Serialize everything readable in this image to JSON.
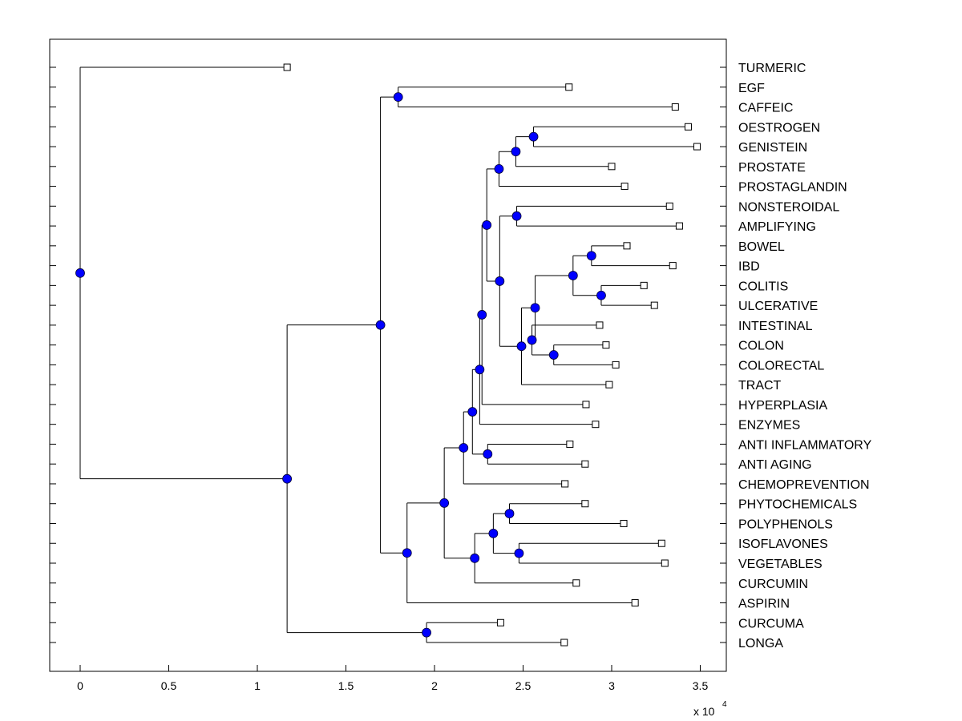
{
  "chart_data": {
    "type": "dendrogram",
    "title": "",
    "xlabel": "",
    "ylabel": "",
    "x_scale_label": "x 10",
    "x_scale_exponent": "4",
    "xlim": [
      -0.17,
      3.65
    ],
    "xticks": [
      "0",
      "0.5",
      "1",
      "1.5",
      "2",
      "2.5",
      "3",
      "3.5"
    ],
    "xtick_values": [
      0,
      0.5,
      1,
      1.5,
      2,
      2.5,
      3,
      3.5
    ],
    "colors": {
      "node": "#0000ff",
      "line": "#000000",
      "leaf": "#ffffff"
    },
    "leaves": [
      {
        "name": "TURMERIC",
        "height": 1.168
      },
      {
        "name": "EGF",
        "height": 2.759
      },
      {
        "name": "CAFFEIC",
        "height": 3.359
      },
      {
        "name": "OESTROGEN",
        "height": 3.432
      },
      {
        "name": "GENISTEIN",
        "height": 3.482
      },
      {
        "name": "PROSTATE",
        "height": 3.0
      },
      {
        "name": "PROSTAGLANDIN",
        "height": 3.073
      },
      {
        "name": "NONSTEROIDAL",
        "height": 3.327
      },
      {
        "name": "AMPLIFYING",
        "height": 3.382
      },
      {
        "name": "BOWEL",
        "height": 3.086
      },
      {
        "name": "IBD",
        "height": 3.345
      },
      {
        "name": "COLITIS",
        "height": 3.182
      },
      {
        "name": "ULCERATIVE",
        "height": 3.241
      },
      {
        "name": "INTESTINAL",
        "height": 2.932
      },
      {
        "name": "COLON",
        "height": 2.968
      },
      {
        "name": "COLORECTAL",
        "height": 3.023
      },
      {
        "name": "TRACT",
        "height": 2.986
      },
      {
        "name": "HYPERPLASIA",
        "height": 2.855
      },
      {
        "name": "ENZYMES",
        "height": 2.909
      },
      {
        "name": "ANTI INFLAMMATORY",
        "height": 2.764
      },
      {
        "name": "ANTI AGING",
        "height": 2.85
      },
      {
        "name": "CHEMOPREVENTION",
        "height": 2.736
      },
      {
        "name": "PHYTOCHEMICALS",
        "height": 2.85
      },
      {
        "name": "POLYPHENOLS",
        "height": 3.068
      },
      {
        "name": "ISOFLAVONES",
        "height": 3.282
      },
      {
        "name": "VEGETABLES",
        "height": 3.3
      },
      {
        "name": "CURCUMIN",
        "height": 2.8
      },
      {
        "name": "ASPIRIN",
        "height": 3.132
      },
      {
        "name": "CURCUMA",
        "height": 2.373
      },
      {
        "name": "LONGA",
        "height": 2.732
      }
    ],
    "merges": [
      {
        "children": [
          1,
          2
        ],
        "height": 1.795
      },
      {
        "children": [
          3,
          4
        ],
        "height": 2.559
      },
      {
        "children": [
          31,
          5
        ],
        "height": 2.459
      },
      {
        "children": [
          32,
          6
        ],
        "height": 2.364
      },
      {
        "children": [
          7,
          8
        ],
        "height": 2.464
      },
      {
        "children": [
          9,
          10
        ],
        "height": 2.886
      },
      {
        "children": [
          11,
          12
        ],
        "height": 2.941
      },
      {
        "children": [
          35,
          36
        ],
        "height": 2.782
      },
      {
        "children": [
          14,
          15
        ],
        "height": 2.673
      },
      {
        "children": [
          13,
          38
        ],
        "height": 2.55
      },
      {
        "children": [
          37,
          39
        ],
        "height": 2.568
      },
      {
        "children": [
          40,
          16
        ],
        "height": 2.491
      },
      {
        "children": [
          34,
          41
        ],
        "height": 2.368
      },
      {
        "children": [
          33,
          42
        ],
        "height": 2.295
      },
      {
        "children": [
          43,
          17
        ],
        "height": 2.268
      },
      {
        "children": [
          44,
          18
        ],
        "height": 2.255
      },
      {
        "children": [
          19,
          20
        ],
        "height": 2.3
      },
      {
        "children": [
          45,
          46
        ],
        "height": 2.214
      },
      {
        "children": [
          47,
          21
        ],
        "height": 2.164
      },
      {
        "children": [
          22,
          23
        ],
        "height": 2.423
      },
      {
        "children": [
          24,
          25
        ],
        "height": 2.477
      },
      {
        "children": [
          49,
          50
        ],
        "height": 2.332
      },
      {
        "children": [
          51,
          26
        ],
        "height": 2.227
      },
      {
        "children": [
          48,
          52
        ],
        "height": 2.055
      },
      {
        "children": [
          53,
          27
        ],
        "height": 1.845
      },
      {
        "children": [
          30,
          54
        ],
        "height": 1.695
      },
      {
        "children": [
          28,
          29
        ],
        "height": 1.955
      },
      {
        "children": [
          55,
          56
        ],
        "height": 1.168
      },
      {
        "children": [
          0,
          57
        ],
        "height": 0
      }
    ]
  }
}
